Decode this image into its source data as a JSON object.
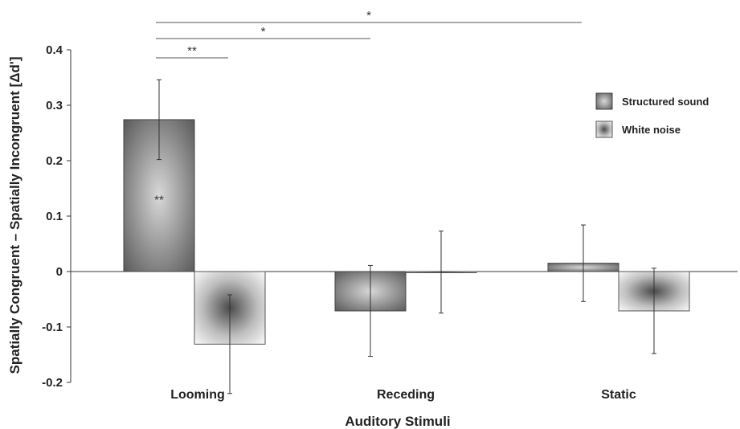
{
  "chart_data": {
    "type": "bar",
    "title": "",
    "xlabel": "Auditory Stimuli",
    "ylabel": "Spatially Congruent – Spatially Incongruent [Δd']",
    "ylim": [
      -0.2,
      0.4
    ],
    "yticks": [
      0.4,
      0.3,
      0.2,
      0.1,
      0,
      -0.1,
      -0.2
    ],
    "ytick_labels": [
      "0.4",
      "0.3",
      "0.2",
      "0.1",
      "0",
      "-0.1",
      "-0.2"
    ],
    "categories": [
      "Looming",
      "Receding",
      "Static"
    ],
    "series": [
      {
        "name": "Structured sound",
        "values": [
          0.274,
          -0.071,
          0.015
        ],
        "errors": [
          0.072,
          0.082,
          0.069
        ],
        "style": "dark-gradient"
      },
      {
        "name": "White noise",
        "values": [
          -0.131,
          -0.001,
          -0.071
        ],
        "errors": [
          0.089,
          0.074,
          0.077
        ],
        "style": "light-gradient"
      }
    ],
    "bar_annotations": [
      {
        "category_index": 0,
        "series_index": 0,
        "text": "**"
      }
    ],
    "significance_brackets": [
      {
        "from": "Looming",
        "to": "Static",
        "text": "*"
      },
      {
        "from": "Looming",
        "to": "Receding",
        "text": "*"
      },
      {
        "from": "Looming",
        "to": "Looming White noise",
        "text": "**"
      }
    ],
    "legend_position": "top-right",
    "grid": false
  }
}
